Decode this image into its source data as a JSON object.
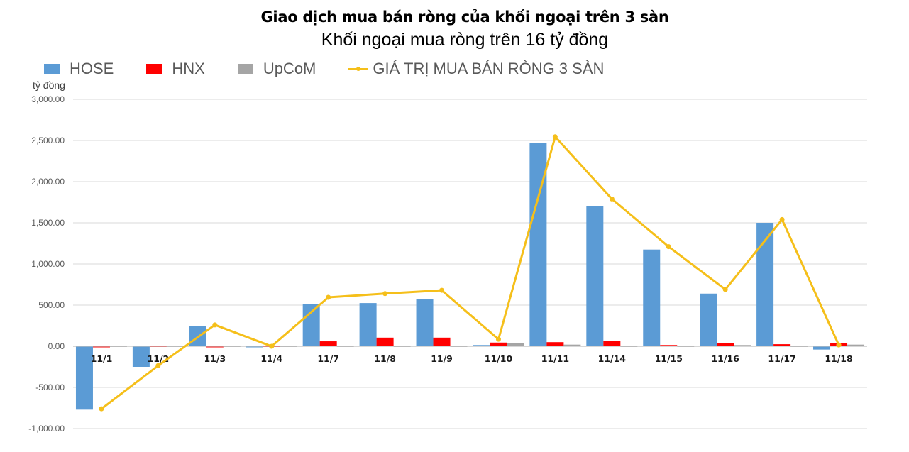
{
  "header": {
    "title": "Giao dịch mua bán ròng của khối ngoại trên 3 sàn",
    "subtitle": "Khối ngoại mua ròng trên 16 tỷ đồng"
  },
  "legend": [
    {
      "label": "HOSE",
      "color": "#5b9bd5",
      "kind": "bar"
    },
    {
      "label": "HNX",
      "color": "#ff0000",
      "kind": "bar"
    },
    {
      "label": "UpCoM",
      "color": "#a5a5a5",
      "kind": "bar"
    },
    {
      "label": "GIÁ TRỊ MUA BÁN RÒNG 3 SÀN",
      "color": "#f5bf1a",
      "kind": "line"
    }
  ],
  "axis": {
    "unit_label": "tỷ đồng",
    "ticks": [
      "3,000.00",
      "2,500.00",
      "2,000.00",
      "1,500.00",
      "1,000.00",
      "500.00",
      "0.00",
      "-500.00",
      "-1,000.00"
    ]
  },
  "chart_data": {
    "type": "bar",
    "title": "Giao dịch mua bán ròng của khối ngoại trên 3 sàn",
    "subtitle": "Khối ngoại mua ròng trên 16 tỷ đồng",
    "xlabel": "",
    "ylabel": "tỷ đồng",
    "ylim": [
      -1000,
      3000
    ],
    "ytick_step": 500,
    "grid": true,
    "legend_position": "top",
    "categories": [
      "11/1",
      "11/2",
      "11/3",
      "11/4",
      "11/7",
      "11/8",
      "11/9",
      "11/10",
      "11/11",
      "11/14",
      "11/15",
      "11/16",
      "11/17",
      "11/18"
    ],
    "series": [
      {
        "name": "HOSE",
        "type": "bar",
        "color": "#5b9bd5",
        "values": [
          -770,
          -250,
          250,
          -10,
          515,
          525,
          570,
          15,
          2470,
          1700,
          1175,
          640,
          1500,
          -40
        ]
      },
      {
        "name": "HNX",
        "type": "bar",
        "color": "#ff0000",
        "values": [
          -10,
          5,
          -10,
          5,
          60,
          105,
          105,
          45,
          50,
          65,
          15,
          35,
          25,
          35
        ]
      },
      {
        "name": "UpCoM",
        "type": "bar",
        "color": "#a5a5a5",
        "values": [
          5,
          5,
          5,
          5,
          5,
          5,
          5,
          35,
          20,
          5,
          5,
          15,
          5,
          20
        ]
      },
      {
        "name": "GIÁ TRỊ MUA BÁN RÒNG 3 SÀN",
        "type": "line",
        "color": "#f5bf1a",
        "values": [
          -760,
          -235,
          260,
          0,
          595,
          640,
          680,
          85,
          2545,
          1790,
          1210,
          690,
          1540,
          16
        ]
      }
    ]
  }
}
